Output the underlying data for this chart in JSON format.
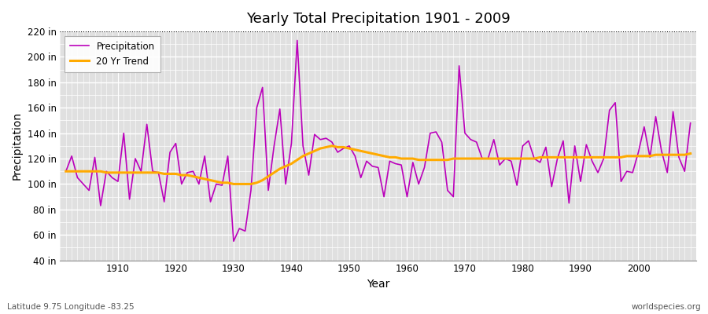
{
  "title": "Yearly Total Precipitation 1901 - 2009",
  "xlabel": "Year",
  "ylabel": "Precipitation",
  "lat_lon_label": "Latitude 9.75 Longitude -83.25",
  "source_label": "worldspecies.org",
  "ylim": [
    40,
    220
  ],
  "yticks": [
    40,
    60,
    80,
    100,
    120,
    140,
    160,
    180,
    200,
    220
  ],
  "ytick_labels": [
    "40 in",
    "60 in",
    "80 in",
    "100 in",
    "120 in",
    "140 in",
    "160 in",
    "180 in",
    "200 in",
    "220 in"
  ],
  "xlim": [
    1900,
    2010
  ],
  "xticks": [
    1910,
    1920,
    1930,
    1940,
    1950,
    1960,
    1970,
    1980,
    1990,
    2000
  ],
  "fig_bg_color": "#ffffff",
  "bg_color": "#e0e0e0",
  "precip_color": "#bb00bb",
  "trend_color": "#ffaa00",
  "precip_label": "Precipitation",
  "trend_label": "20 Yr Trend",
  "years": [
    1901,
    1902,
    1903,
    1904,
    1905,
    1906,
    1907,
    1908,
    1909,
    1910,
    1911,
    1912,
    1913,
    1914,
    1915,
    1916,
    1917,
    1918,
    1919,
    1920,
    1921,
    1922,
    1923,
    1924,
    1925,
    1926,
    1927,
    1928,
    1929,
    1930,
    1931,
    1932,
    1933,
    1934,
    1935,
    1936,
    1937,
    1938,
    1939,
    1940,
    1941,
    1942,
    1943,
    1944,
    1945,
    1946,
    1947,
    1948,
    1949,
    1950,
    1951,
    1952,
    1953,
    1954,
    1955,
    1956,
    1957,
    1958,
    1959,
    1960,
    1961,
    1962,
    1963,
    1964,
    1965,
    1966,
    1967,
    1968,
    1969,
    1970,
    1971,
    1972,
    1973,
    1974,
    1975,
    1976,
    1977,
    1978,
    1979,
    1980,
    1981,
    1982,
    1983,
    1984,
    1985,
    1986,
    1987,
    1988,
    1989,
    1990,
    1991,
    1992,
    1993,
    1994,
    1995,
    1996,
    1997,
    1998,
    1999,
    2000,
    2001,
    2002,
    2003,
    2004,
    2005,
    2006,
    2007,
    2008,
    2009
  ],
  "precip": [
    110,
    122,
    105,
    100,
    95,
    121,
    83,
    110,
    105,
    102,
    140,
    88,
    120,
    110,
    147,
    110,
    109,
    86,
    125,
    132,
    100,
    109,
    110,
    100,
    122,
    86,
    100,
    99,
    122,
    55,
    65,
    63,
    95,
    160,
    176,
    95,
    130,
    159,
    100,
    132,
    213,
    130,
    107,
    139,
    135,
    136,
    133,
    125,
    128,
    130,
    122,
    105,
    118,
    114,
    113,
    90,
    118,
    116,
    115,
    90,
    117,
    100,
    113,
    140,
    141,
    133,
    95,
    90,
    193,
    140,
    135,
    133,
    120,
    120,
    135,
    115,
    120,
    118,
    99,
    130,
    134,
    120,
    117,
    129,
    98,
    120,
    134,
    85,
    130,
    102,
    131,
    118,
    109,
    120,
    158,
    164,
    102,
    110,
    109,
    125,
    145,
    121,
    153,
    126,
    109,
    157,
    121,
    110,
    148
  ],
  "trend": [
    110,
    110,
    110,
    110,
    110,
    110,
    110,
    109,
    109,
    109,
    109,
    109,
    109,
    109,
    109,
    109,
    109,
    108,
    108,
    108,
    107,
    107,
    106,
    105,
    104,
    103,
    102,
    101,
    101,
    100,
    100,
    100,
    100,
    101,
    103,
    106,
    109,
    112,
    114,
    116,
    119,
    122,
    124,
    126,
    128,
    129,
    130,
    129,
    129,
    128,
    127,
    126,
    125,
    124,
    123,
    122,
    121,
    121,
    120,
    120,
    120,
    119,
    119,
    119,
    119,
    119,
    119,
    120,
    120,
    120,
    120,
    120,
    120,
    120,
    120,
    120,
    120,
    120,
    120,
    120,
    120,
    120,
    121,
    121,
    121,
    121,
    121,
    121,
    121,
    121,
    121,
    121,
    121,
    121,
    121,
    121,
    121,
    122,
    122,
    122,
    122,
    122,
    123,
    123,
    123,
    123,
    123,
    123,
    124
  ]
}
